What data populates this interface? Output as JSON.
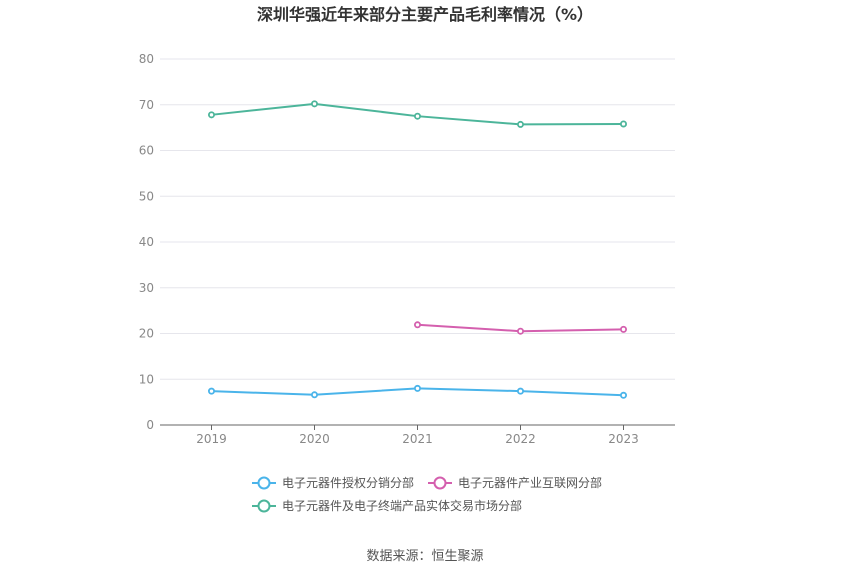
{
  "chart_data": {
    "type": "line",
    "title": "深圳华强近年来部分主要产品毛利率情况（%）",
    "categories": [
      "2019",
      "2020",
      "2021",
      "2022",
      "2023"
    ],
    "ylim": [
      0,
      80
    ],
    "yticks": [
      "0",
      "10",
      "20",
      "30",
      "40",
      "50",
      "60",
      "70",
      "80"
    ],
    "grid": true,
    "legend_position": "bottom",
    "series": [
      {
        "name": "电子元器件授权分销分部",
        "color": "#4ab4ea",
        "values": [
          7.4,
          6.6,
          8.0,
          7.4,
          6.5
        ]
      },
      {
        "name": "电子元器件产业互联网分部",
        "color": "#d45fae",
        "values": [
          null,
          null,
          21.9,
          20.5,
          20.9
        ]
      },
      {
        "name": "电子元器件及电子终端产品实体交易市场分部",
        "color": "#4cb59a",
        "values": [
          67.8,
          70.2,
          67.5,
          65.7,
          65.8
        ]
      }
    ]
  },
  "footer": {
    "source": "数据来源：恒生聚源"
  }
}
